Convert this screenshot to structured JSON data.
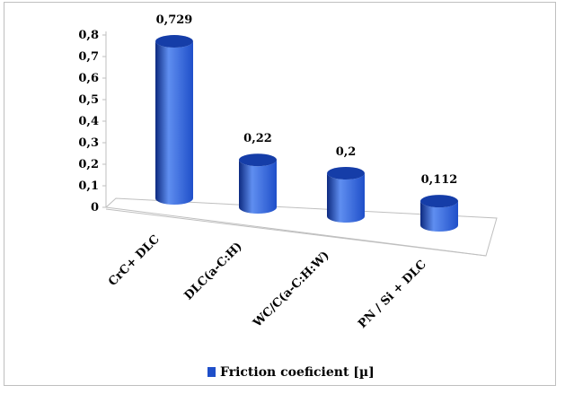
{
  "chart_data": {
    "type": "bar",
    "categories": [
      "CrC+ DLC",
      "DLC(a-C:H)",
      "WC/C(a-C:H:W)",
      "PN / Si + DLC"
    ],
    "series": [
      {
        "name": "Friction coeficient [µ]",
        "values": [
          0.729,
          0.22,
          0.2,
          0.112
        ]
      }
    ],
    "data_labels": [
      "0,729",
      "0,22",
      "0,2",
      "0,112"
    ],
    "y_ticks": [
      "0",
      "0,1",
      "0,2",
      "0,3",
      "0,4",
      "0,5",
      "0,6",
      "0,7",
      "0,8"
    ],
    "ylim": [
      0,
      0.8
    ],
    "legend_position": "bottom",
    "grid": false,
    "style": "3d-cylinder",
    "colors": {
      "bar": "#1f4fc9",
      "bar_dark": "#0d2a80",
      "bar_light": "#5f8ef0",
      "top": "#153da8",
      "axis": "#bfbfbf"
    }
  }
}
